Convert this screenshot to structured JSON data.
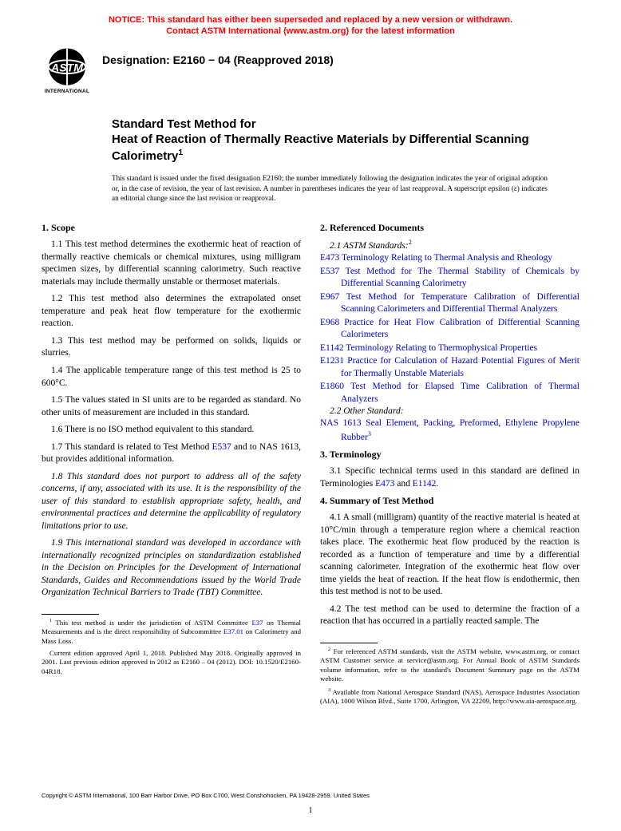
{
  "notice": {
    "line1": "NOTICE: This standard has either been superseded and replaced by a new version or withdrawn.",
    "line2": "Contact ASTM International (www.astm.org) for the latest information"
  },
  "logo_label": "INTERNATIONAL",
  "designation": "Designation: E2160 − 04 (Reapproved 2018)",
  "title": {
    "line1": "Standard Test Method for",
    "line2": "Heat of Reaction of Thermally Reactive Materials by Differential Scanning Calorimetry",
    "sup": "1"
  },
  "issuance_note": "This standard is issued under the fixed designation E2160; the number immediately following the designation indicates the year of original adoption or, in the case of revision, the year of last revision. A number in parentheses indicates the year of last reapproval. A superscript epsilon (ε) indicates an editorial change since the last revision or reapproval.",
  "sections": {
    "scope_heading": "1. Scope",
    "scope": [
      "1.1 This test method determines the exothermic heat of reaction of thermally reactive chemicals or chemical mixtures, using milligram specimen sizes, by differential scanning calorimetry. Such reactive materials may include thermally unstable or thermoset materials.",
      "1.2 This test method also determines the extrapolated onset temperature and peak heat flow temperature for the exothermic reaction.",
      "1.3 This test method may be performed on solids, liquids or slurries.",
      "1.4 The applicable temperature range of this test method is 25 to 600°C.",
      "1.5 The values stated in SI units are to be regarded as standard. No other units of measurement are included in this standard.",
      "1.6 There is no ISO method equivalent to this standard."
    ],
    "scope_1_7_prefix": "1.7 This standard is related to Test Method ",
    "scope_1_7_link": "E537",
    "scope_1_7_suffix": " and to NAS 1613, but provides additional information.",
    "scope_1_8": "1.8 This standard does not purport to address all of the safety concerns, if any, associated with its use. It is the responsibility of the user of this standard to establish appropriate safety, health, and environmental practices and determine the applicability of regulatory limitations prior to use.",
    "scope_1_9": "1.9 This international standard was developed in accordance with internationally recognized principles on standardization established in the Decision on Principles for the Development of International Standards, Guides and Recommendations issued by the World Trade Organization Technical Barriers to Trade (TBT) Committee.",
    "referenced_heading": "2. Referenced Documents",
    "astm_standards_label": "2.1 ASTM Standards:",
    "astm_standards_sup": "2",
    "astm_refs": [
      {
        "code": "E473",
        "title": "Terminology Relating to Thermal Analysis and Rheology"
      },
      {
        "code": "E537",
        "title": "Test Method for The Thermal Stability of Chemicals by Differential Scanning Calorimetry"
      },
      {
        "code": "E967",
        "title": "Test Method for Temperature Calibration of Differential Scanning Calorimeters and Differential Thermal Analyzers"
      },
      {
        "code": "E968",
        "title": "Practice for Heat Flow Calibration of Differential Scanning Calorimeters"
      },
      {
        "code": "E1142",
        "title": "Terminology Relating to Thermophysical Properties"
      },
      {
        "code": "E1231",
        "title": "Practice for Calculation of Hazard Potential Figures of Merit for Thermally Unstable Materials"
      },
      {
        "code": "E1860",
        "title": "Test Method for Elapsed Time Calibration of Thermal Analyzers"
      }
    ],
    "other_standard_label": "2.2 Other Standard:",
    "other_ref": {
      "code": "NAS 1613",
      "title": "Seal Element, Packing, Preformed, Ethylene Propylene Rubber",
      "sup": "3"
    },
    "terminology_heading": "3. Terminology",
    "terminology_prefix": "3.1 Specific technical terms used in this standard are defined in Terminologies ",
    "terminology_link1": "E473",
    "terminology_mid": " and ",
    "terminology_link2": "E1142",
    "terminology_suffix": ".",
    "summary_heading": "4. Summary of Test Method",
    "summary": [
      "4.1 A small (milligram) quantity of the reactive material is heated at 10°C/min through a temperature region where a chemical reaction takes place. The exothermic heat flow produced by the reaction is recorded as a function of temperature and time by a differential scanning calorimeter. Integration of the exothermic heat flow over time yields the heat of reaction. If the heat flow is endothermic, then this test method is not to be used.",
      "4.2 The test method can be used to determine the fraction of a reaction that has occurred in a partially reacted sample. The"
    ]
  },
  "footnotes_left": {
    "fn1_prefix": "This test method is under the jurisdiction of ASTM Committee ",
    "fn1_link1": "E37",
    "fn1_mid": " on Thermal Measurements and is the direct responsibility of Subcommittee ",
    "fn1_link2": "E37.01",
    "fn1_suffix": " on Calorimetry and Mass Loss.",
    "fn1b": "Current edition approved April 1, 2018. Published May 2018. Originally approved in 2001. Last previous edition approved in 2012 as E2160 – 04 (2012). DOI: 10.1520/E2160-04R18."
  },
  "footnotes_right": {
    "fn2": "For referenced ASTM standards, visit the ASTM website, www.astm.org, or contact ASTM Customer service at service@astm.org. For Annual Book of ASTM Standards volume information, refer to the standard's Document Summary page on the ASTM website.",
    "fn3": "Available from National Aerospace Standard (NAS), Aerospace Industries Association (AIA), 1000 Wilson Blvd., Suite 1700, Arlington, VA 22209, http://www.aia-aerospace.org."
  },
  "copyright": "Copyright © ASTM International, 100 Barr Harbor Drive, PO Box C700, West Conshohocken, PA 19428-2959. United States",
  "page_number": "1"
}
